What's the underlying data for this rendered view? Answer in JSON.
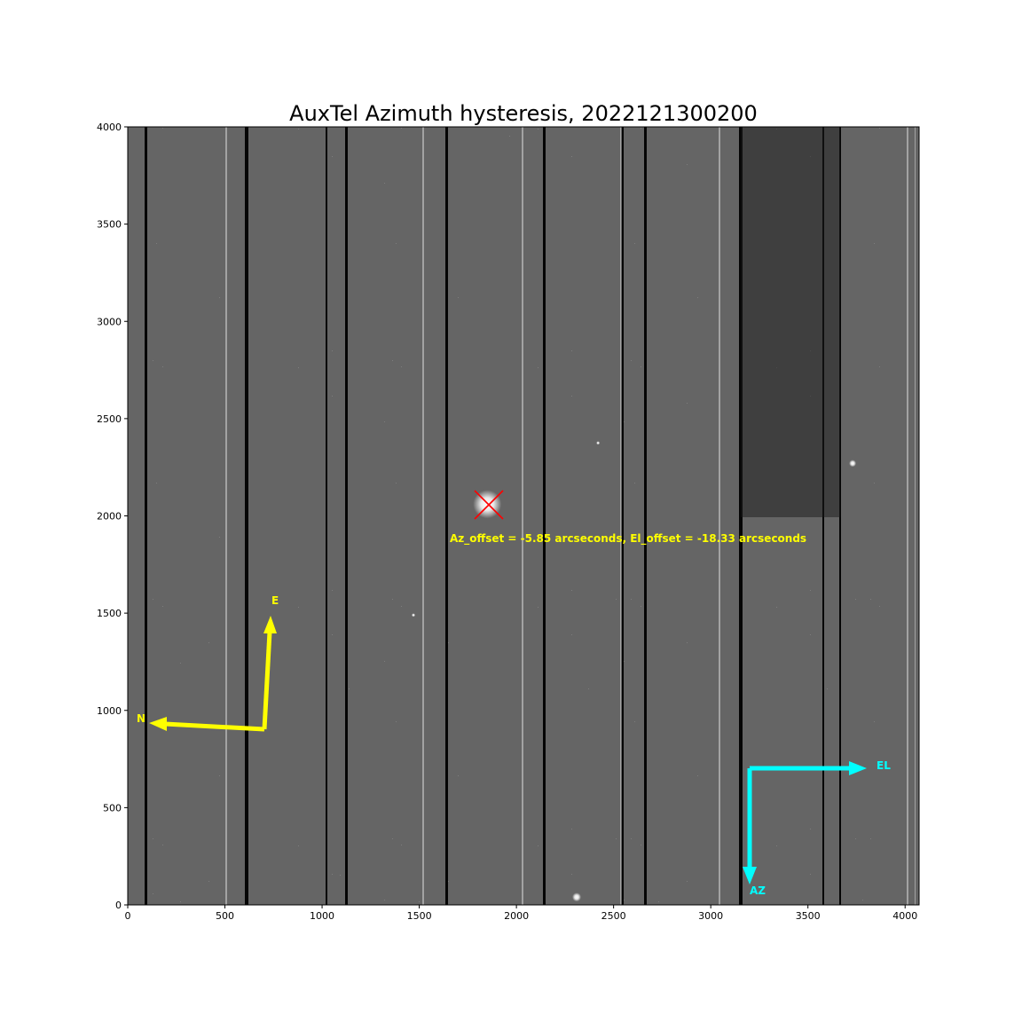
{
  "title": "AuxTel Azimuth hysteresis, 2022121300200",
  "offset_text": "Az_offset = -5.85 arcseconds, El_offset = -18.33 arcseconds",
  "compass": {
    "east_label": "E",
    "north_label": "N",
    "el_label": "EL",
    "az_label": "AZ",
    "yellow_color": "#ffff00",
    "cyan_color": "#00ffff"
  },
  "marker_color": "#ff0000",
  "image_extent": {
    "x": [
      0,
      4072
    ],
    "y": [
      0,
      4000
    ]
  },
  "x_ticks": [
    0,
    500,
    1000,
    1500,
    2000,
    2500,
    3000,
    3500,
    4000
  ],
  "y_ticks": [
    0,
    500,
    1000,
    1500,
    2000,
    2500,
    3000,
    3500,
    4000
  ],
  "star_marker": {
    "x": 1850,
    "y": 2060
  }
}
